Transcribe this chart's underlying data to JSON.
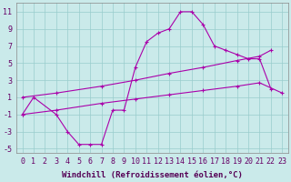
{
  "xlabel": "Windchill (Refroidissement éolien,°C)",
  "background_color": "#caeaea",
  "line_color": "#aa00aa",
  "grid_color": "#99cccc",
  "xlim": [
    -0.5,
    23.5
  ],
  "ylim": [
    -5.5,
    12
  ],
  "xticks": [
    0,
    1,
    2,
    3,
    4,
    5,
    6,
    7,
    8,
    9,
    10,
    11,
    12,
    13,
    14,
    15,
    16,
    17,
    18,
    19,
    20,
    21,
    22,
    23
  ],
  "yticks": [
    -5,
    -3,
    -1,
    1,
    3,
    5,
    7,
    9,
    11
  ],
  "line1_x": [
    0,
    1,
    3,
    4,
    5,
    6,
    7,
    8,
    9,
    10,
    11,
    12,
    13,
    14,
    15,
    16,
    17,
    18,
    19,
    20,
    21,
    22
  ],
  "line1_y": [
    -1,
    1,
    -1,
    -3,
    -4.5,
    -4.5,
    -4.5,
    -0.5,
    -0.5,
    4.5,
    7.5,
    8.5,
    9,
    11,
    11,
    9.5,
    7,
    6.5,
    6,
    5.5,
    5.5,
    2
  ],
  "line2_x": [
    0,
    3,
    7,
    10,
    13,
    16,
    19,
    21,
    22
  ],
  "line2_y": [
    1,
    1.5,
    2.3,
    3.0,
    3.8,
    4.5,
    5.3,
    5.8,
    6.5
  ],
  "line3_x": [
    0,
    3,
    7,
    10,
    13,
    16,
    19,
    21,
    23
  ],
  "line3_y": [
    -1,
    -0.5,
    0.3,
    0.8,
    1.3,
    1.8,
    2.3,
    2.7,
    1.5
  ],
  "font_size": 6
}
